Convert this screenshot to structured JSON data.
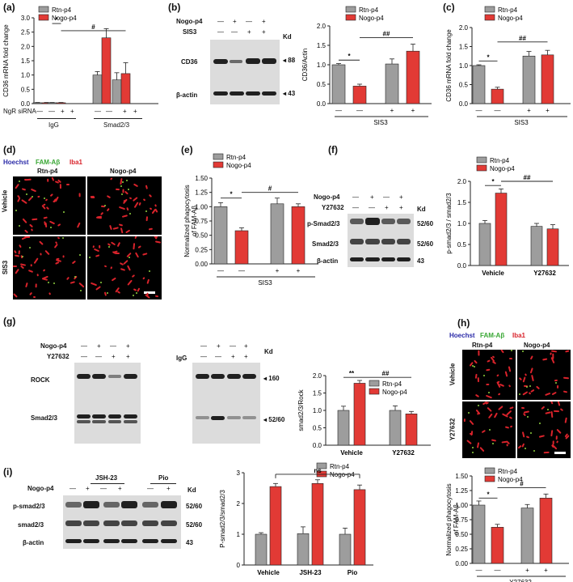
{
  "panel_labels": {
    "a": "(a)",
    "b": "(b)",
    "c": "(c)",
    "d": "(d)",
    "e": "(e)",
    "f": "(f)",
    "g": "(g)",
    "h": "(h)",
    "i": "(i)"
  },
  "legend": {
    "rtn": "Rtn-p4",
    "nogo": "Nogo-p4"
  },
  "colors": {
    "rtn": "#9d9d9d",
    "nogo": "#e23a35"
  },
  "signs": {
    "minus": "—",
    "plus": "+"
  },
  "a": {
    "ylabel": "CD36 mRNA fold change",
    "yticks": [
      "0.0",
      "0.5",
      "1.0",
      "1.5",
      "2.0",
      "2.5",
      "3.0"
    ],
    "row_label": "NgR siRNA",
    "groups": [
      "IgG",
      "Smad2/3"
    ],
    "sig1": "*",
    "sig2": "#"
  },
  "b": {
    "row1": "Nogo-p4",
    "row2": "SIS3",
    "kd": "Kd",
    "band1": "CD36",
    "band2": "β-actin",
    "mw1": "88",
    "mw2": "43",
    "ylabel": "CD36/Actin",
    "yticks": [
      "0.0",
      "0.5",
      "1.0",
      "1.5",
      "2.0"
    ],
    "xlabel": "SIS3",
    "sig1": "*",
    "sig2": "##"
  },
  "c": {
    "ylabel": "CD36 mRNA fold change",
    "yticks": [
      "0.0",
      "0.5",
      "1.0",
      "1.5",
      "2.0"
    ],
    "xlabel": "SIS3",
    "sig1": "*",
    "sig2": "##"
  },
  "d": {
    "stain1": "Hoechst",
    "stain2": "FAM-Aβ",
    "stain3": "Iba1",
    "col1": "Rtn-p4",
    "col2": "Nogo-p4",
    "row1": "Vehicle",
    "row2": "SIS3"
  },
  "e": {
    "ylabel1": "Normalized phagocytosis",
    "ylabel2": "of FAM-Aβ",
    "yticks": [
      "0.00",
      "0.25",
      "0.50",
      "0.75",
      "1.00",
      "1.25",
      "1.50"
    ],
    "xlabel": "SIS3",
    "sig1": "*",
    "sig2": "#"
  },
  "f": {
    "row1": "Nogo-p4",
    "row2": "Y27632",
    "kd": "Kd",
    "band1": "p-Smad2/3",
    "band2": "Smad2/3",
    "band3": "β-actin",
    "mw1": "52/60",
    "mw2": "52/60",
    "mw3": "43",
    "ylabel": "p-smad2/3 / smad2/3",
    "yticks": [
      "0.0",
      "0.5",
      "1.0",
      "1.5",
      "2.0"
    ],
    "groups": [
      "Vehicle",
      "Y27632"
    ],
    "sig1": "*",
    "sig2": "##"
  },
  "g": {
    "row1": "Nogo-p4",
    "row2": "Y27632",
    "igg": "IgG",
    "kd": "Kd",
    "band1": "ROCK",
    "band2": "Smad2/3",
    "mw1": "160",
    "mw2": "52/60",
    "ylabel": "smad2/3/Rock",
    "yticks": [
      "0.0",
      "0.5",
      "1.0",
      "1.5",
      "2.0"
    ],
    "groups": [
      "Vehicle",
      "Y27632"
    ],
    "sig1": "**",
    "sig2": "##"
  },
  "h": {
    "stain1": "Hoechst",
    "stain2": "FAM-Aβ",
    "stain3": "Iba1",
    "col1": "Rtn-p4",
    "col2": "Nogo-p4",
    "row1": "Vehicle",
    "row2": "Y27632",
    "ylabel1": "Normalized phagocytosis",
    "ylabel2": "of FAM-Aβ",
    "yticks": [
      "0.00",
      "0.25",
      "0.50",
      "0.75",
      "1.00",
      "1.25",
      "1.50"
    ],
    "xlabel": "Y27632",
    "sig1": "*",
    "sig2": "#"
  },
  "i": {
    "header1": "JSH-23",
    "header2": "Pio",
    "row1": "Nogo-p4",
    "kd": "Kd",
    "band1": "p-smad2/3",
    "band2": "smad2/3",
    "band3": "β-actin",
    "mw1": "52/60",
    "mw2": "52/60",
    "mw3": "43",
    "ylabel": "P-smad2/3/smad2/3",
    "yticks": [
      "0",
      "1",
      "2",
      "3"
    ],
    "groups": [
      "Vehicle",
      "JSH-23",
      "Pio"
    ],
    "sig": "ns"
  },
  "chart_data": [
    {
      "id": "a",
      "type": "bar",
      "ylabel": "CD36 mRNA fold change",
      "ylim": [
        0,
        3
      ],
      "categories": [
        "IgG -",
        "IgG +",
        "Smad2/3 -",
        "Smad2/3 +"
      ],
      "series": [
        {
          "name": "Rtn-p4",
          "values": [
            0.03,
            0.03,
            1.0,
            0.83
          ],
          "errors": [
            0.01,
            0.01,
            0.12,
            0.25
          ]
        },
        {
          "name": "Nogo-p4",
          "values": [
            0.03,
            0.03,
            2.3,
            1.05
          ],
          "errors": [
            0.01,
            0.01,
            0.32,
            0.38
          ]
        }
      ]
    },
    {
      "id": "b",
      "type": "bar",
      "ylabel": "CD36/Actin",
      "xlabel": "SIS3",
      "ylim": [
        0,
        2
      ],
      "categories": [
        "—",
        "+"
      ],
      "series": [
        {
          "name": "Rtn-p4",
          "values": [
            1.0,
            1.02
          ],
          "errors": [
            0.03,
            0.13
          ]
        },
        {
          "name": "Nogo-p4",
          "values": [
            0.45,
            1.35
          ],
          "errors": [
            0.05,
            0.18
          ]
        }
      ]
    },
    {
      "id": "c",
      "type": "bar",
      "ylabel": "CD36 mRNA fold change",
      "xlabel": "SIS3",
      "ylim": [
        0,
        2
      ],
      "categories": [
        "—",
        "+"
      ],
      "series": [
        {
          "name": "Rtn-p4",
          "values": [
            1.0,
            1.25
          ],
          "errors": [
            0.02,
            0.12
          ]
        },
        {
          "name": "Nogo-p4",
          "values": [
            0.38,
            1.28
          ],
          "errors": [
            0.05,
            0.12
          ]
        }
      ]
    },
    {
      "id": "e",
      "type": "bar",
      "ylabel": "Normalized phagocytosis of FAM-Aβ",
      "xlabel": "SIS3",
      "ylim": [
        0,
        1.5
      ],
      "categories": [
        "—",
        "+"
      ],
      "series": [
        {
          "name": "Rtn-p4",
          "values": [
            1.0,
            1.05
          ],
          "errors": [
            0.07,
            0.1
          ]
        },
        {
          "name": "Nogo-p4",
          "values": [
            0.58,
            1.0
          ],
          "errors": [
            0.05,
            0.05
          ]
        }
      ]
    },
    {
      "id": "f",
      "type": "bar",
      "ylabel": "p-smad2/3 / smad2/3",
      "ylim": [
        0,
        2
      ],
      "categories": [
        "Vehicle",
        "Y27632"
      ],
      "series": [
        {
          "name": "Rtn-p4",
          "values": [
            1.0,
            0.93
          ],
          "errors": [
            0.07,
            0.07
          ]
        },
        {
          "name": "Nogo-p4",
          "values": [
            1.72,
            0.87
          ],
          "errors": [
            0.1,
            0.1
          ]
        }
      ]
    },
    {
      "id": "g",
      "type": "bar",
      "ylabel": "smad2/3/Rock",
      "ylim": [
        0,
        2
      ],
      "categories": [
        "Vehicle",
        "Y27632"
      ],
      "series": [
        {
          "name": "Rtn-p4",
          "values": [
            1.0,
            1.0
          ],
          "errors": [
            0.12,
            0.13
          ]
        },
        {
          "name": "Nogo-p4",
          "values": [
            1.78,
            0.9
          ],
          "errors": [
            0.08,
            0.07
          ]
        }
      ]
    },
    {
      "id": "h",
      "type": "bar",
      "ylabel": "Normalized phagocytosis of FAM-Aβ",
      "xlabel": "Y27632",
      "ylim": [
        0,
        1.5
      ],
      "categories": [
        "—",
        "+"
      ],
      "series": [
        {
          "name": "Rtn-p4",
          "values": [
            1.0,
            0.95
          ],
          "errors": [
            0.07,
            0.06
          ]
        },
        {
          "name": "Nogo-p4",
          "values": [
            0.62,
            1.12
          ],
          "errors": [
            0.05,
            0.07
          ]
        }
      ]
    },
    {
      "id": "i",
      "type": "bar",
      "ylabel": "P-smad2/3/smad2/3",
      "ylim": [
        0,
        3
      ],
      "categories": [
        "Vehicle",
        "JSH-23",
        "Pio"
      ],
      "series": [
        {
          "name": "Rtn-p4",
          "values": [
            1.0,
            1.02,
            1.0
          ],
          "errors": [
            0.05,
            0.22,
            0.2
          ]
        },
        {
          "name": "Nogo-p4",
          "values": [
            2.55,
            2.65,
            2.45
          ],
          "errors": [
            0.1,
            0.12,
            0.15
          ]
        }
      ]
    }
  ]
}
